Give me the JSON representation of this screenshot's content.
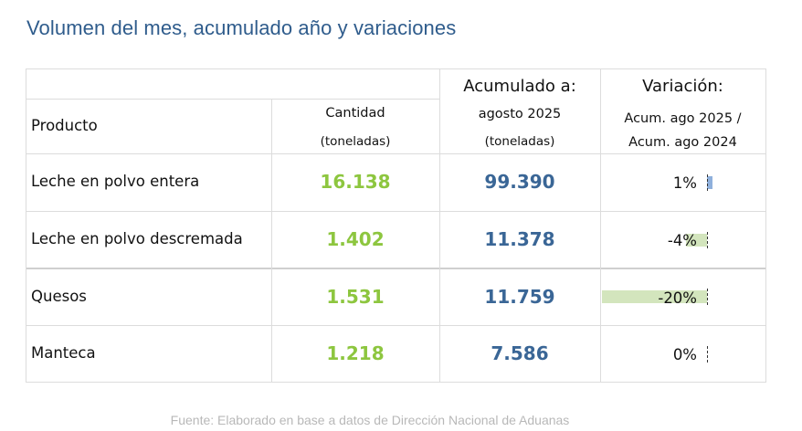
{
  "title": "Volumen del mes, acumulado año y variaciones",
  "header": {
    "producto": "Producto",
    "cantidad_line1": "Cantidad",
    "cantidad_line2": "(toneladas)",
    "acumulado_line0": "Acumulado a:",
    "acumulado_line1": "agosto 2025",
    "acumulado_line2": "(toneladas)",
    "variacion_line0": "Variación:",
    "variacion_line1": "Acum. ago 2025 /",
    "variacion_line2": "Acum. ago 2024"
  },
  "rows": [
    {
      "producto": "Leche en polvo entera",
      "cantidad": "16.138",
      "acumulado": "99.390",
      "variacion": "1%",
      "variacion_value": 1
    },
    {
      "producto": "Leche en polvo descremada",
      "cantidad": "1.402",
      "acumulado": "11.378",
      "variacion": "-4%",
      "variacion_value": -4
    },
    {
      "producto": "Quesos",
      "cantidad": "1.531",
      "acumulado": "11.759",
      "variacion": "-20%",
      "variacion_value": -20
    },
    {
      "producto": "Manteca",
      "cantidad": "1.218",
      "acumulado": "7.586",
      "variacion": "0%",
      "variacion_value": 0
    }
  ],
  "colors": {
    "positive_bar": "#8fb0dc",
    "negative_bar": "#d3e5bd",
    "cantidad_text": "#8dc63f",
    "acumulado_text": "#3a6696"
  },
  "source": "Fuente: Elaborado en base a datos de Dirección Nacional de Aduanas"
}
